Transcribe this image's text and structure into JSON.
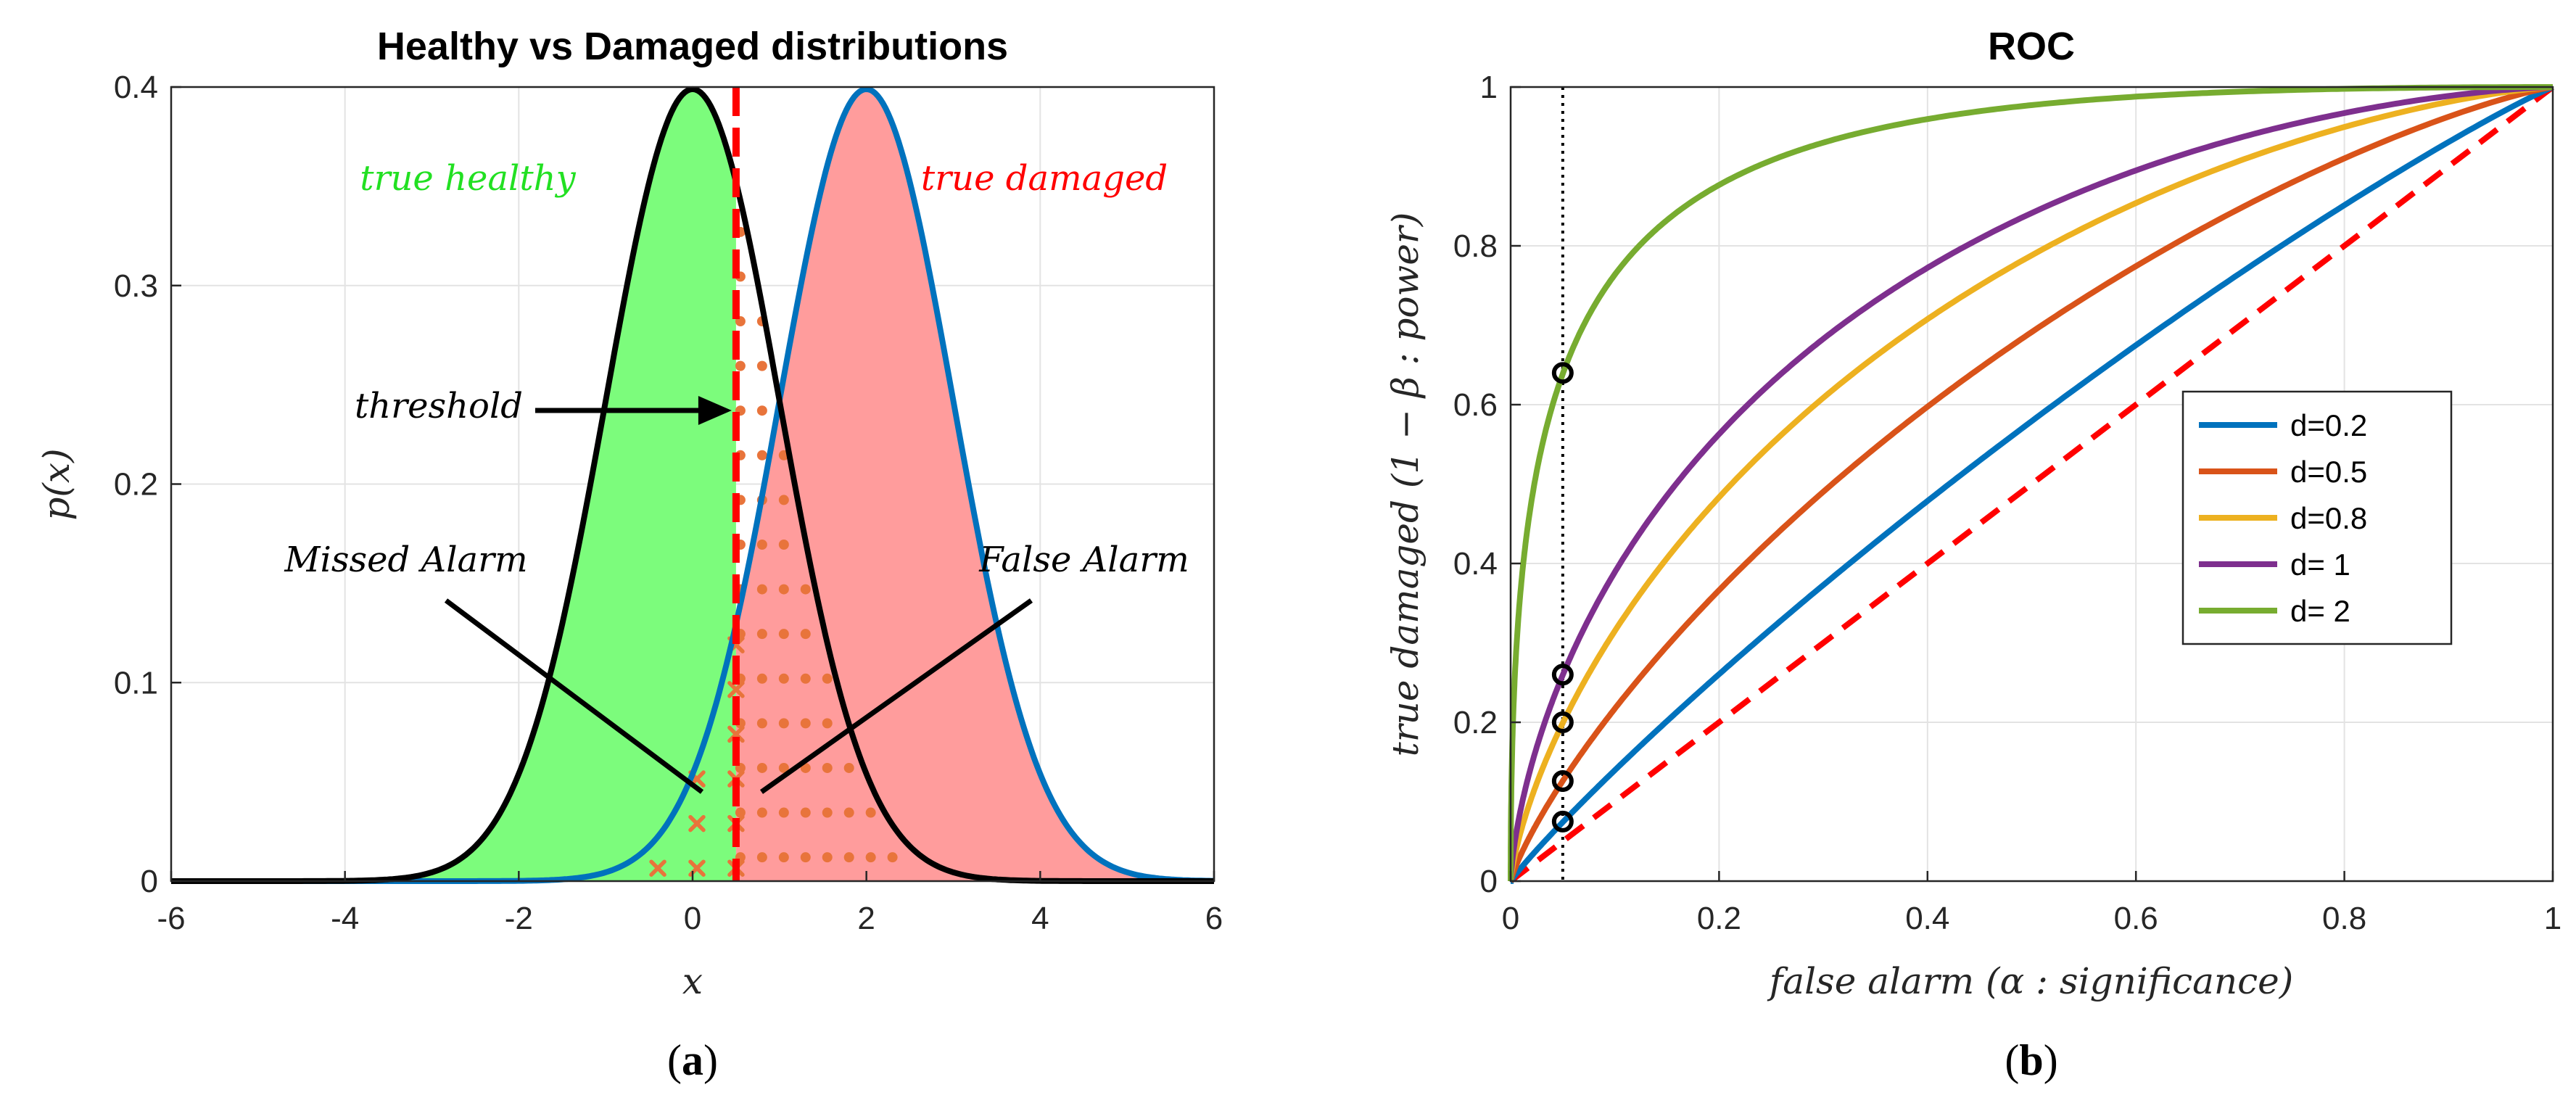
{
  "chart_data": [
    {
      "type": "area",
      "title": "Healthy vs Damaged distributions",
      "xlabel": "x",
      "ylabel": "p(x)",
      "xlim": [
        -6,
        6
      ],
      "ylim": [
        0,
        0.4
      ],
      "xticks": [
        "-6",
        "-4",
        "-2",
        "0",
        "2",
        "4",
        "6"
      ],
      "yticks": [
        "0",
        "0.1",
        "0.2",
        "0.3",
        "0.4"
      ],
      "grid": true,
      "series": [
        {
          "name": "healthy",
          "distribution": "normal",
          "mean": 0,
          "sd": 1,
          "line_color": "#000000",
          "fill_color": "#7CFC7C"
        },
        {
          "name": "damaged",
          "distribution": "normal",
          "mean": 2,
          "sd": 1,
          "line_color": "#0072BD",
          "fill_color": "#FF9C9C"
        }
      ],
      "threshold": 0.5,
      "threshold_color": "#FF0000",
      "marker_color": "#E8743B",
      "annotations": {
        "true_healthy": "true healthy",
        "true_damaged": "true damaged",
        "threshold": "threshold",
        "missed_alarm": "Missed Alarm",
        "false_alarm": "False Alarm"
      },
      "panel_label": {
        "open": "(",
        "letter": "a",
        "close": ")"
      }
    },
    {
      "type": "line",
      "title": "ROC",
      "xlabel": "false alarm (α : significance)",
      "ylabel": "true damaged (1 − β : power)",
      "xlim": [
        0,
        1
      ],
      "ylim": [
        0,
        1
      ],
      "xticks": [
        "0",
        "0.2",
        "0.4",
        "0.6",
        "0.8",
        "1"
      ],
      "yticks": [
        "0",
        "0.2",
        "0.4",
        "0.6",
        "0.8",
        "1"
      ],
      "grid": true,
      "alpha_marker": 0.05,
      "series": [
        {
          "name": "d=0.2",
          "d": 0.2,
          "color": "#0072BD",
          "point": [
            0.05,
            0.075
          ]
        },
        {
          "name": "d=0.5",
          "d": 0.5,
          "color": "#D95319",
          "point": [
            0.05,
            0.126
          ]
        },
        {
          "name": "d=0.8",
          "d": 0.8,
          "color": "#EDB120",
          "point": [
            0.05,
            0.2
          ]
        },
        {
          "name": "d=  1",
          "d": 1,
          "color": "#7E2F8E",
          "point": [
            0.05,
            0.26
          ]
        },
        {
          "name": "d=  2",
          "d": 2,
          "color": "#77AC30",
          "point": [
            0.05,
            0.64
          ]
        }
      ],
      "chance_line": {
        "from": [
          0,
          0
        ],
        "to": [
          1,
          1
        ],
        "color": "#FF0000",
        "style": "dashed"
      },
      "legend": "center-right",
      "panel_label": {
        "open": "(",
        "letter": "b",
        "close": ")"
      }
    }
  ]
}
